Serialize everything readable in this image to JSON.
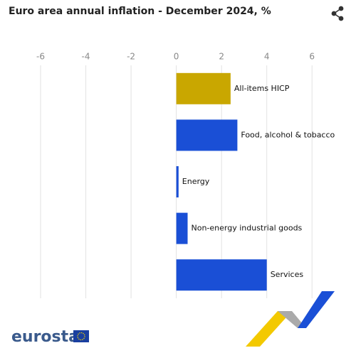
{
  "chart_data": {
    "type": "hbar",
    "title": "Euro area annual inflation - December 2024, %",
    "categories": [
      "All-items HICP",
      "Food, alcohol & tobacco",
      "Energy",
      "Non-energy industrial goods",
      "Services"
    ],
    "values": [
      2.4,
      2.7,
      0.1,
      0.5,
      4.0
    ],
    "colors": [
      "#c9a700",
      "#1a4fd6",
      "#1a4fd6",
      "#1a4fd6",
      "#1a4fd6"
    ],
    "xlim": [
      -6,
      7
    ],
    "xticks": [
      -6,
      -4,
      -2,
      0,
      2,
      4,
      6
    ],
    "grid": true
  },
  "footer": {
    "logo": "eurostat"
  }
}
